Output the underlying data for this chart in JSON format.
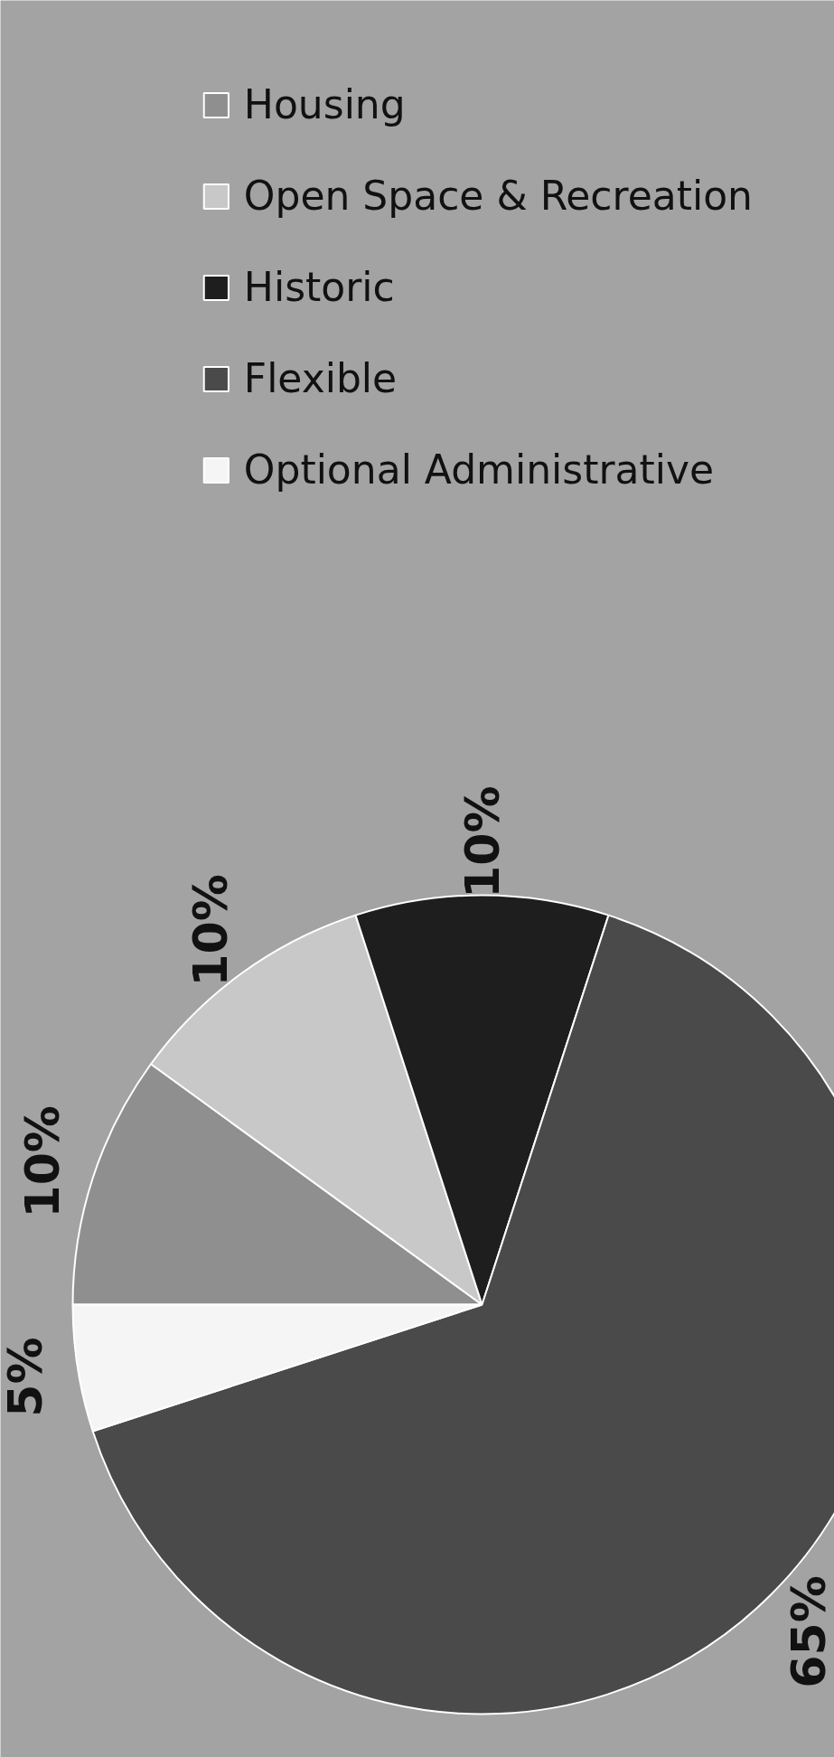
{
  "chart_data": {
    "type": "pie",
    "categories": [
      "Housing",
      "Open Space & Recreation",
      "Historic",
      "Flexible",
      "Optional Administrative"
    ],
    "values": [
      10,
      10,
      10,
      65,
      5
    ],
    "colors": [
      "#8f8f8f",
      "#c8c8c8",
      "#1e1e1e",
      "#4a4a4a",
      "#f5f5f5"
    ],
    "value_labels": [
      "10%",
      "10%",
      "10%",
      "65%",
      "5%"
    ],
    "legend": "right"
  }
}
